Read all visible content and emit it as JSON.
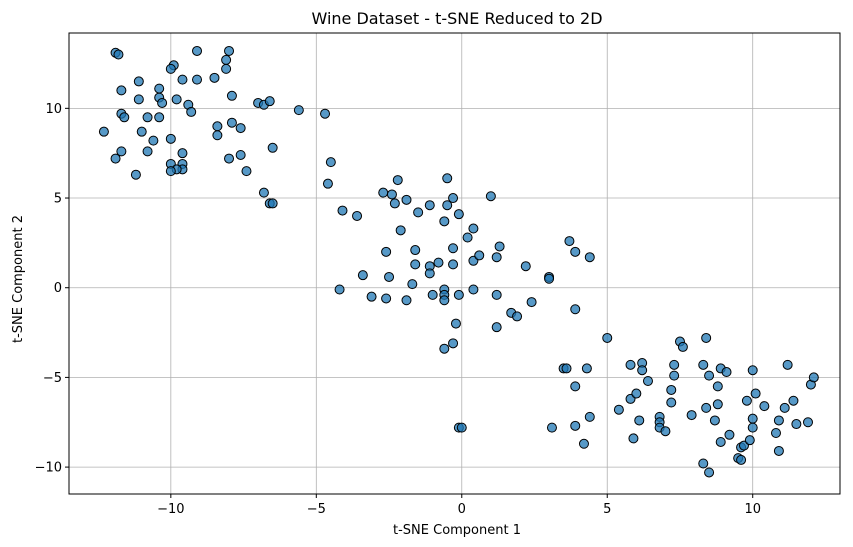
{
  "chart_data": {
    "type": "scatter",
    "title": "Wine Dataset - t-SNE Reduced to 2D",
    "xlabel": "t-SNE Component 1",
    "ylabel": "t-SNE Component 2",
    "xlim": [
      -13.5,
      13.0
    ],
    "ylim": [
      -11.5,
      14.2
    ],
    "xticks": [
      -10,
      -5,
      0,
      5,
      10
    ],
    "yticks": [
      -10,
      -5,
      0,
      5,
      10
    ],
    "xtick_labels": [
      "−10",
      "−5",
      "0",
      "5",
      "10"
    ],
    "ytick_labels": [
      "−10",
      "−5",
      "0",
      "5",
      "10"
    ],
    "grid": true,
    "marker_color": "#1f77b4",
    "marker_edge": "#000000",
    "points": [
      [
        -11.9,
        13.1
      ],
      [
        -11.8,
        13.0
      ],
      [
        -9.1,
        13.2
      ],
      [
        -8.0,
        13.2
      ],
      [
        -9.9,
        12.4
      ],
      [
        -10.0,
        12.2
      ],
      [
        -8.1,
        12.7
      ],
      [
        -8.1,
        12.2
      ],
      [
        -11.1,
        11.5
      ],
      [
        -9.6,
        11.6
      ],
      [
        -9.1,
        11.6
      ],
      [
        -8.5,
        11.7
      ],
      [
        -11.7,
        11.0
      ],
      [
        -10.4,
        11.1
      ],
      [
        -10.4,
        10.6
      ],
      [
        -10.3,
        10.3
      ],
      [
        -9.8,
        10.5
      ],
      [
        -9.4,
        10.2
      ],
      [
        -9.3,
        9.8
      ],
      [
        -11.1,
        10.5
      ],
      [
        -7.9,
        10.7
      ],
      [
        -7.0,
        10.3
      ],
      [
        -6.8,
        10.2
      ],
      [
        -6.6,
        10.4
      ],
      [
        -11.7,
        9.7
      ],
      [
        -11.6,
        9.5
      ],
      [
        -10.8,
        9.5
      ],
      [
        -10.4,
        9.5
      ],
      [
        -8.4,
        9.0
      ],
      [
        -7.9,
        9.2
      ],
      [
        -7.6,
        8.9
      ],
      [
        -12.3,
        8.7
      ],
      [
        -11.0,
        8.7
      ],
      [
        -10.6,
        8.2
      ],
      [
        -10.0,
        8.3
      ],
      [
        -8.4,
        8.5
      ],
      [
        -11.7,
        7.6
      ],
      [
        -10.8,
        7.6
      ],
      [
        -9.6,
        7.5
      ],
      [
        -11.9,
        7.2
      ],
      [
        -10.0,
        6.9
      ],
      [
        -9.6,
        6.9
      ],
      [
        -9.6,
        6.6
      ],
      [
        -9.8,
        6.6
      ],
      [
        -10.0,
        6.5
      ],
      [
        -8.0,
        7.2
      ],
      [
        -7.6,
        7.4
      ],
      [
        -6.5,
        7.8
      ],
      [
        -7.4,
        6.5
      ],
      [
        -11.2,
        6.3
      ],
      [
        -6.8,
        5.3
      ],
      [
        -6.6,
        4.7
      ],
      [
        -6.5,
        4.7
      ],
      [
        -5.6,
        9.9
      ],
      [
        -4.7,
        9.7
      ],
      [
        -4.5,
        7.0
      ],
      [
        -4.6,
        5.8
      ],
      [
        -2.2,
        6.0
      ],
      [
        -2.7,
        5.3
      ],
      [
        -2.4,
        5.2
      ],
      [
        -2.3,
        4.7
      ],
      [
        -1.9,
        4.9
      ],
      [
        -1.5,
        4.2
      ],
      [
        -1.1,
        4.6
      ],
      [
        -0.5,
        4.6
      ],
      [
        -0.5,
        6.1
      ],
      [
        -0.3,
        5.0
      ],
      [
        -0.1,
        4.1
      ],
      [
        1.0,
        5.1
      ],
      [
        -4.1,
        4.3
      ],
      [
        -3.6,
        4.0
      ],
      [
        -2.1,
        3.2
      ],
      [
        -1.6,
        2.1
      ],
      [
        -0.6,
        3.7
      ],
      [
        0.2,
        2.8
      ],
      [
        0.4,
        3.3
      ],
      [
        -2.6,
        2.0
      ],
      [
        -1.6,
        1.3
      ],
      [
        -1.1,
        1.2
      ],
      [
        -0.8,
        1.4
      ],
      [
        -0.3,
        1.3
      ],
      [
        -0.3,
        2.2
      ],
      [
        0.4,
        1.5
      ],
      [
        0.6,
        1.8
      ],
      [
        1.2,
        1.7
      ],
      [
        1.3,
        2.3
      ],
      [
        2.2,
        1.2
      ],
      [
        3.0,
        0.6
      ],
      [
        3.0,
        0.5
      ],
      [
        3.7,
        2.6
      ],
      [
        3.9,
        2.0
      ],
      [
        4.4,
        1.7
      ],
      [
        -3.4,
        0.7
      ],
      [
        -2.5,
        0.6
      ],
      [
        -1.1,
        0.8
      ],
      [
        -1.7,
        0.2
      ],
      [
        0.4,
        -0.1
      ],
      [
        -4.2,
        -0.1
      ],
      [
        -3.1,
        -0.5
      ],
      [
        -2.6,
        -0.6
      ],
      [
        -1.9,
        -0.7
      ],
      [
        -1.0,
        -0.4
      ],
      [
        -0.6,
        -0.1
      ],
      [
        -0.1,
        -0.4
      ],
      [
        -0.6,
        -0.4
      ],
      [
        -0.6,
        -0.7
      ],
      [
        1.2,
        -0.4
      ],
      [
        2.4,
        -0.8
      ],
      [
        1.7,
        -1.4
      ],
      [
        1.9,
        -1.6
      ],
      [
        1.2,
        -2.2
      ],
      [
        3.9,
        -1.2
      ],
      [
        -0.2,
        -2.0
      ],
      [
        -0.3,
        -3.1
      ],
      [
        -0.6,
        -3.4
      ],
      [
        -0.1,
        -7.8
      ],
      [
        0.0,
        -7.8
      ],
      [
        3.5,
        -4.5
      ],
      [
        3.6,
        -4.5
      ],
      [
        4.3,
        -4.5
      ],
      [
        3.9,
        -5.5
      ],
      [
        5.0,
        -2.8
      ],
      [
        4.4,
        -7.2
      ],
      [
        3.9,
        -7.7
      ],
      [
        3.1,
        -7.8
      ],
      [
        4.2,
        -8.7
      ],
      [
        5.4,
        -6.8
      ],
      [
        5.8,
        -6.2
      ],
      [
        5.9,
        -8.4
      ],
      [
        6.1,
        -7.4
      ],
      [
        6.0,
        -5.9
      ],
      [
        5.8,
        -4.3
      ],
      [
        6.2,
        -4.2
      ],
      [
        6.2,
        -4.6
      ],
      [
        6.4,
        -5.2
      ],
      [
        7.3,
        -4.3
      ],
      [
        7.3,
        -4.9
      ],
      [
        7.5,
        -3.0
      ],
      [
        7.6,
        -3.3
      ],
      [
        7.2,
        -5.7
      ],
      [
        7.2,
        -6.4
      ],
      [
        6.8,
        -7.2
      ],
      [
        6.8,
        -7.5
      ],
      [
        6.8,
        -7.8
      ],
      [
        7.0,
        -8.0
      ],
      [
        7.9,
        -7.1
      ],
      [
        8.3,
        -9.8
      ],
      [
        8.5,
        -10.3
      ],
      [
        8.4,
        -6.7
      ],
      [
        8.8,
        -6.5
      ],
      [
        8.7,
        -7.4
      ],
      [
        8.3,
        -4.3
      ],
      [
        8.4,
        -2.8
      ],
      [
        8.5,
        -4.9
      ],
      [
        8.9,
        -4.5
      ],
      [
        8.8,
        -5.5
      ],
      [
        9.1,
        -4.7
      ],
      [
        9.2,
        -8.2
      ],
      [
        8.9,
        -8.6
      ],
      [
        9.6,
        -8.9
      ],
      [
        9.5,
        -9.5
      ],
      [
        9.6,
        -9.6
      ],
      [
        9.7,
        -8.8
      ],
      [
        9.8,
        -6.3
      ],
      [
        10.0,
        -7.3
      ],
      [
        10.0,
        -7.8
      ],
      [
        9.9,
        -8.5
      ],
      [
        10.1,
        -5.9
      ],
      [
        10.0,
        -4.6
      ],
      [
        10.4,
        -6.6
      ],
      [
        10.8,
        -8.1
      ],
      [
        10.9,
        -9.1
      ],
      [
        10.9,
        -7.4
      ],
      [
        11.1,
        -6.7
      ],
      [
        11.4,
        -6.3
      ],
      [
        11.5,
        -7.6
      ],
      [
        11.2,
        -4.3
      ],
      [
        11.9,
        -7.5
      ],
      [
        12.0,
        -5.4
      ],
      [
        12.1,
        -5.0
      ]
    ]
  }
}
